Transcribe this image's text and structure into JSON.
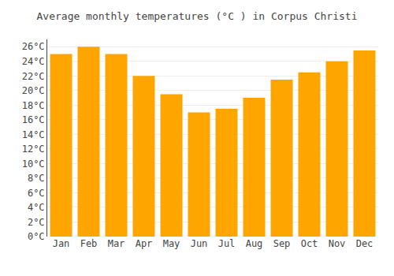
{
  "chart_data": {
    "type": "bar",
    "title": "Average monthly temperatures (°C ) in Corpus Christi",
    "categories": [
      "Jan",
      "Feb",
      "Mar",
      "Apr",
      "May",
      "Jun",
      "Jul",
      "Aug",
      "Sep",
      "Oct",
      "Nov",
      "Dec"
    ],
    "values": [
      25.0,
      26.0,
      25.0,
      22.0,
      19.5,
      17.0,
      17.5,
      19.0,
      21.5,
      22.5,
      24.0,
      25.5
    ],
    "color": "#FFA500",
    "ylim": [
      0,
      27
    ],
    "yticks": [
      {
        "value": 0,
        "label": "0°C"
      },
      {
        "value": 2,
        "label": "2°C"
      },
      {
        "value": 4,
        "label": "4°C"
      },
      {
        "value": 6,
        "label": "6°C"
      },
      {
        "value": 8,
        "label": "8°C"
      },
      {
        "value": 10,
        "label": "10°C"
      },
      {
        "value": 12,
        "label": "12°C"
      },
      {
        "value": 14,
        "label": "14°C"
      },
      {
        "value": 16,
        "label": "16°C"
      },
      {
        "value": 18,
        "label": "18°C"
      },
      {
        "value": 20,
        "label": "20°C"
      },
      {
        "value": 22,
        "label": "22°C"
      },
      {
        "value": 24,
        "label": "24°C"
      },
      {
        "value": 26,
        "label": "26°C"
      }
    ],
    "grid": true
  }
}
